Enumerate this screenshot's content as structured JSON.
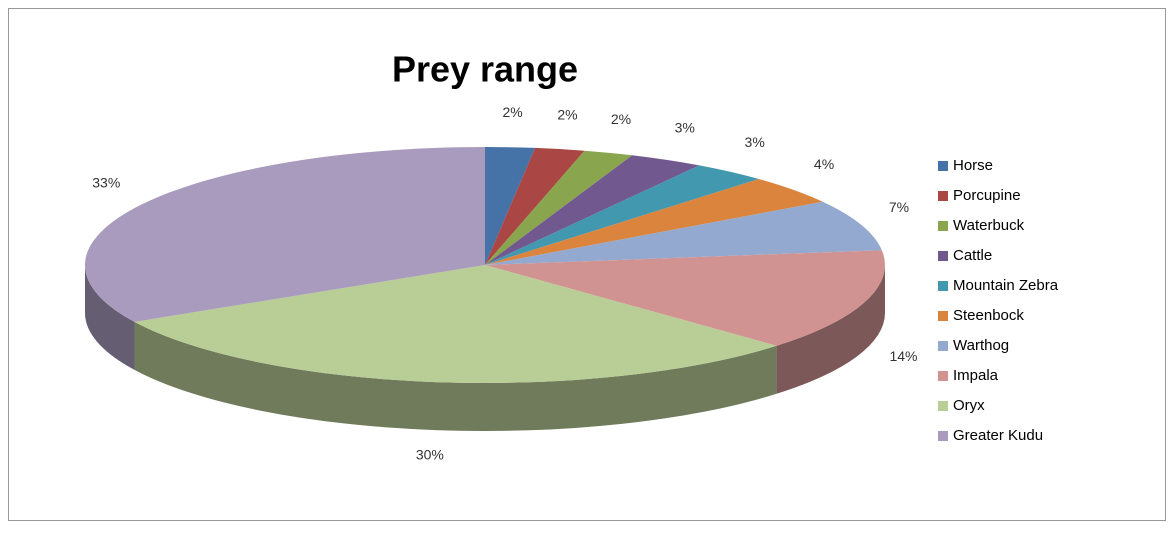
{
  "chart_data": {
    "type": "pie3d",
    "title": "Prey range",
    "categories": [
      "Horse",
      "Porcupine",
      "Waterbuck",
      "Cattle",
      "Mountain Zebra",
      "Steenbock",
      "Warthog",
      "Impala",
      "Oryx",
      "Greater Kudu"
    ],
    "values": [
      2,
      2,
      2,
      3,
      3,
      4,
      7,
      14,
      30,
      33
    ],
    "value_labels": [
      "2%",
      "2%",
      "2%",
      "3%",
      "3%",
      "4%",
      "7%",
      "14%",
      "30%",
      "33%"
    ],
    "colors": [
      "#4572a7",
      "#aa4643",
      "#89a54e",
      "#71588f",
      "#4198af",
      "#db843d",
      "#93a9cf",
      "#d19392",
      "#b9cd96",
      "#a99bbd"
    ],
    "legend": "right"
  }
}
